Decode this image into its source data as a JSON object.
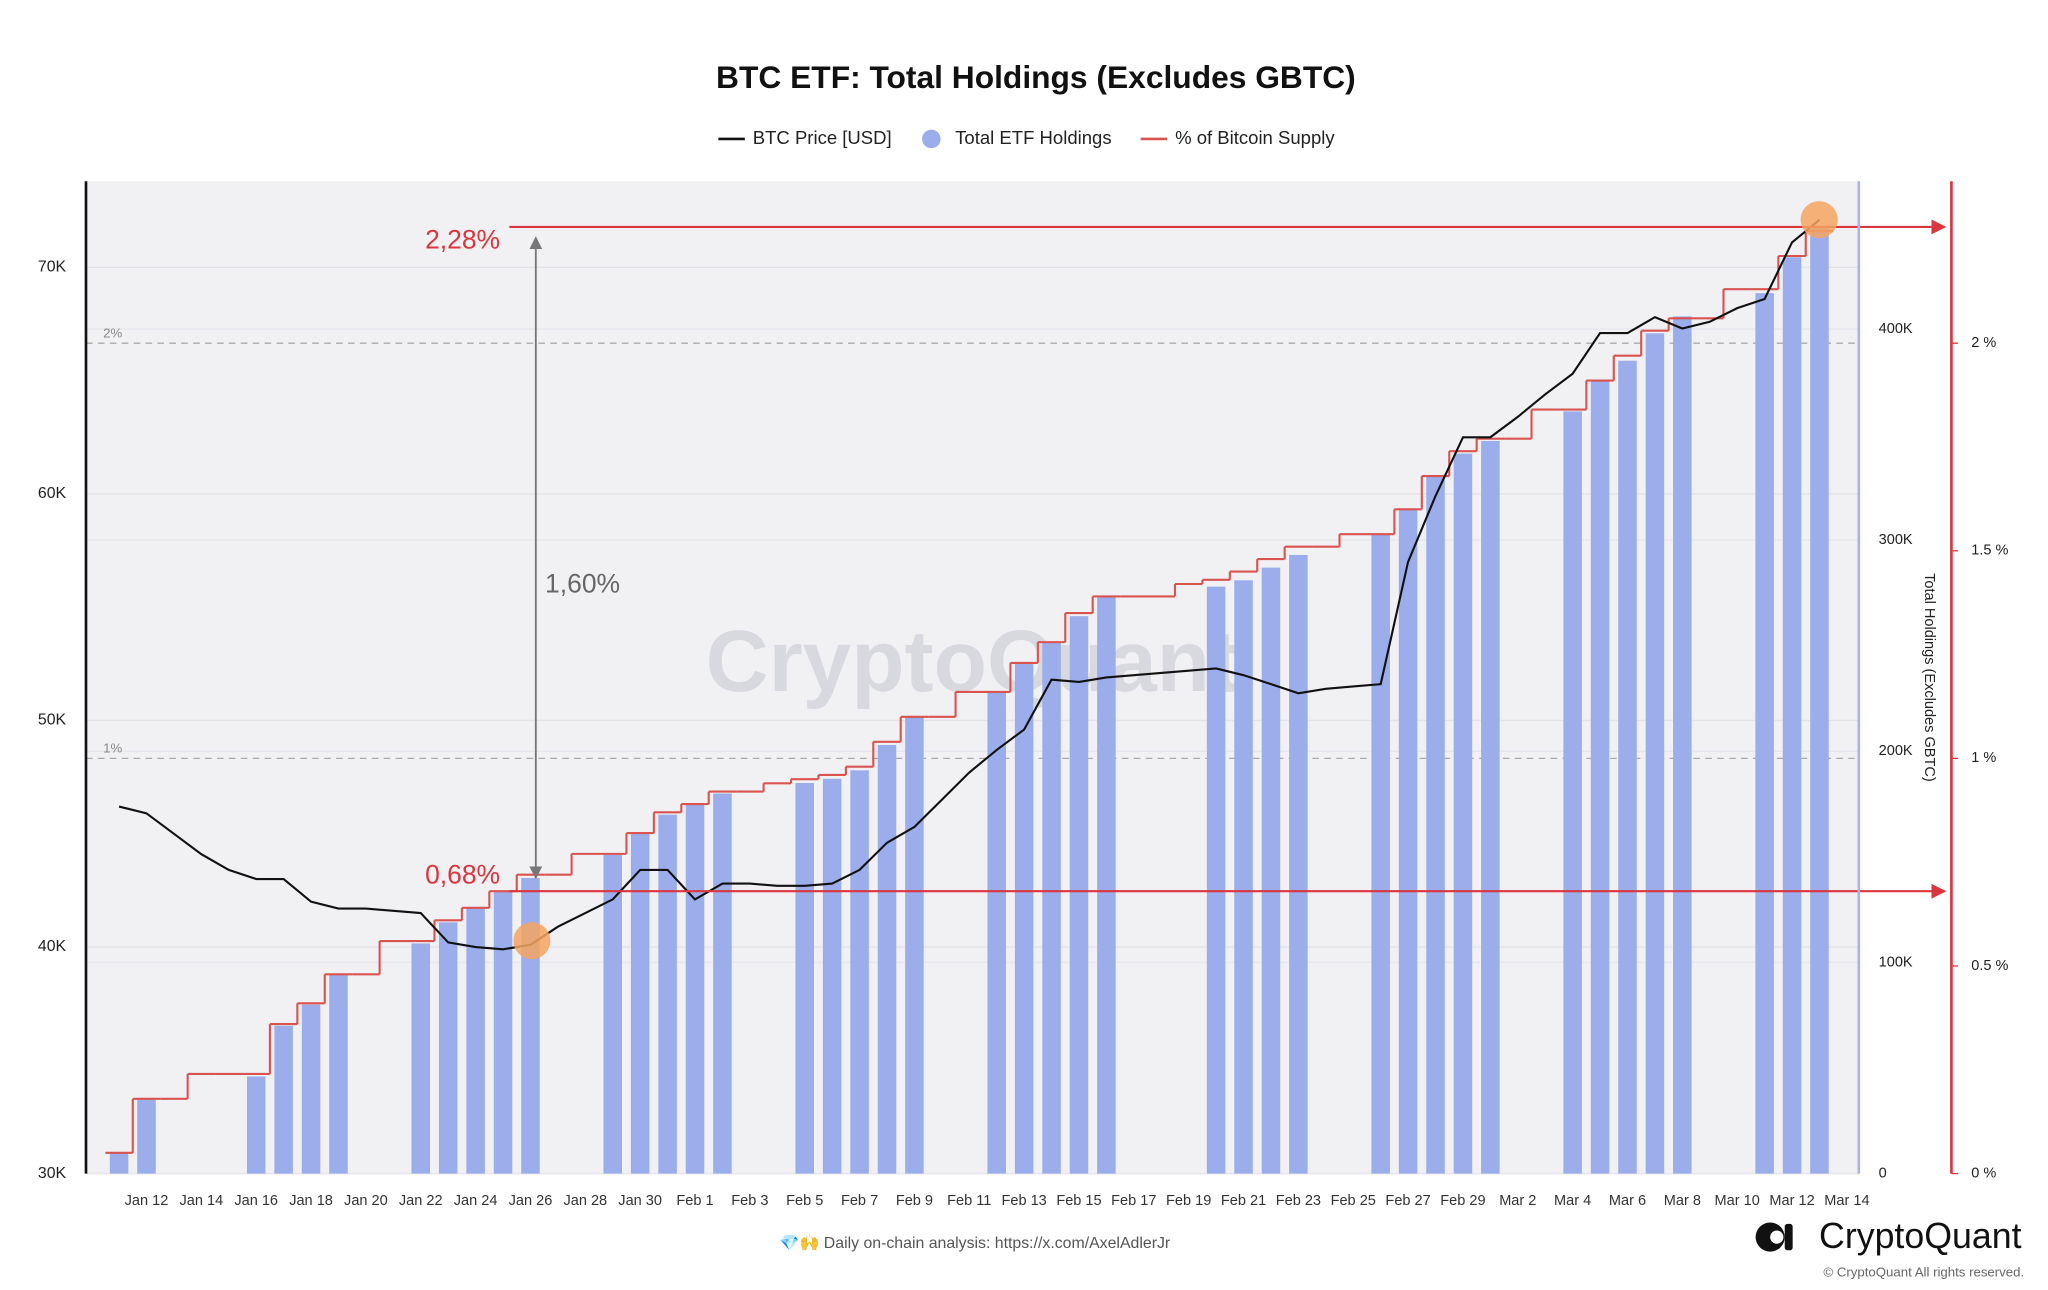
{
  "chart_data": {
    "type": "combo",
    "title": "BTC ETF: Total Holdings (Excludes GBTC)",
    "y2_label": "Total Holdings (Excludes GBTC)",
    "watermark": "CryptoQuant",
    "footer_note": "💎🙌 Daily on-chain analysis: https://x.com/AxelAdlerJr",
    "logo": "CryptoQuant",
    "copyright": "© CryptoQuant All rights reserved.",
    "grid": true,
    "categories": [
      null,
      "Jan 12",
      null,
      "Jan 14",
      null,
      "Jan 16",
      null,
      "Jan 18",
      null,
      "Jan 20",
      null,
      "Jan 22",
      null,
      "Jan 24",
      null,
      "Jan 26",
      null,
      "Jan 28",
      null,
      "Jan 30",
      null,
      "Feb 1",
      null,
      "Feb 3",
      null,
      "Feb 5",
      null,
      "Feb 7",
      null,
      "Feb 9",
      null,
      "Feb 11",
      null,
      "Feb 13",
      null,
      "Feb 15",
      null,
      "Feb 17",
      null,
      "Feb 19",
      null,
      "Feb 21",
      null,
      "Feb 23",
      null,
      "Feb 25",
      null,
      "Feb 27",
      null,
      "Feb 29",
      null,
      "Mar 2",
      null,
      "Mar 4",
      null,
      "Mar 6",
      null,
      "Mar 8",
      null,
      "Mar 10",
      null,
      "Mar 12",
      null,
      "Mar 14"
    ],
    "series": [
      {
        "name": "BTC Price [USD]",
        "type": "line",
        "axis": "y",
        "color": "#111111",
        "values": [
          46200,
          45900,
          45000,
          44100,
          43400,
          43000,
          43000,
          42000,
          41700,
          41700,
          41600,
          41500,
          40200,
          40000,
          39900,
          40100,
          40900,
          41500,
          42100,
          43400,
          43400,
          42100,
          42800,
          42800,
          42700,
          42700,
          42800,
          43400,
          44600,
          45300,
          46500,
          47700,
          48700,
          49600,
          51800,
          51700,
          51900,
          52000,
          52100,
          52200,
          52300,
          52000,
          51600,
          51200,
          51400,
          51500,
          51600,
          57000,
          59900,
          62500,
          62500,
          63400,
          64400,
          65300,
          67100,
          67100,
          67800,
          67300,
          67600,
          68200,
          68600,
          71100,
          72100,
          null
        ]
      },
      {
        "name": "Total ETF Holdings",
        "type": "bar",
        "axis": "y2",
        "color": "#9badea",
        "values": [
          10000,
          35000,
          null,
          null,
          null,
          46000,
          70000,
          80000,
          94000,
          null,
          null,
          109000,
          119000,
          126000,
          134000,
          140000,
          null,
          null,
          151000,
          161000,
          170000,
          175000,
          180000,
          null,
          null,
          185000,
          187000,
          191000,
          203000,
          216000,
          null,
          null,
          228000,
          242000,
          252000,
          264000,
          273000,
          null,
          null,
          null,
          278000,
          281000,
          287000,
          293000,
          null,
          null,
          303000,
          315000,
          330000,
          341000,
          347000,
          null,
          null,
          361000,
          376000,
          385000,
          398000,
          406000,
          null,
          null,
          417000,
          434000,
          449000,
          null
        ]
      },
      {
        "name": "% of Bitcoin Supply",
        "type": "step",
        "axis": "y3",
        "color": "#d9534f",
        "values": [
          0.05,
          0.18,
          0.18,
          0.24,
          0.24,
          0.24,
          0.36,
          0.41,
          0.48,
          0.48,
          0.56,
          0.56,
          0.61,
          0.64,
          0.68,
          0.72,
          0.72,
          0.77,
          0.77,
          0.82,
          0.87,
          0.89,
          0.92,
          0.92,
          0.94,
          0.95,
          0.96,
          0.98,
          1.04,
          1.1,
          1.1,
          1.16,
          1.16,
          1.23,
          1.28,
          1.35,
          1.39,
          1.39,
          1.39,
          1.42,
          1.43,
          1.45,
          1.48,
          1.51,
          1.51,
          1.54,
          1.54,
          1.6,
          1.68,
          1.74,
          1.77,
          1.77,
          1.84,
          1.84,
          1.91,
          1.97,
          2.03,
          2.06,
          2.06,
          2.13,
          2.13,
          2.21,
          2.27,
          null
        ]
      }
    ],
    "ylim": [
      30000,
      73800
    ],
    "yticks": [
      {
        "value": 30000,
        "label": "30K"
      },
      {
        "value": 40000,
        "label": "40K"
      },
      {
        "value": 50000,
        "label": "50K"
      },
      {
        "value": 60000,
        "label": "60K"
      },
      {
        "value": 70000,
        "label": "70K"
      }
    ],
    "y2lim": [
      0,
      470000
    ],
    "y2ticks": [
      0,
      {
        "value": 100000,
        "label": "100K"
      },
      {
        "value": 200000,
        "label": "200K"
      },
      {
        "value": 300000,
        "label": "300K"
      },
      {
        "value": 400000,
        "label": "400K"
      }
    ],
    "y3lim": [
      0,
      2.39
    ],
    "y3ticks": [
      {
        "value": 0,
        "label": "0 %"
      },
      {
        "value": 0.5,
        "label": "0.5 %"
      },
      {
        "value": 1,
        "label": "1 %"
      },
      {
        "value": 1.5,
        "label": "1.5 %"
      },
      {
        "value": 2,
        "label": "2 %"
      }
    ],
    "y3_reference_lines": [
      {
        "value": 1,
        "label": "1%"
      },
      {
        "value": 2,
        "label": "2%"
      }
    ],
    "annotations": [
      {
        "text": "2,28%",
        "value": 2.28
      },
      {
        "text": "0,68%",
        "value": 0.68
      },
      {
        "text": "1,60%",
        "from": 0.68,
        "to": 2.28
      }
    ]
  }
}
